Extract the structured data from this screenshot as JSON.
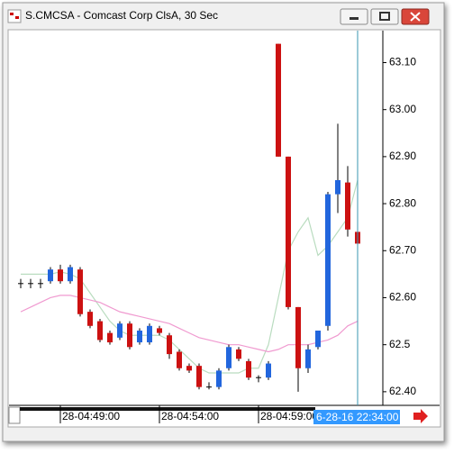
{
  "chart_data": {
    "type": "candlestick",
    "title": "S.CMCSA - Comcast Corp ClsA, 30 Sec",
    "categories": [
      null,
      null,
      null,
      null,
      "28-04:49:00",
      null,
      null,
      null,
      null,
      null,
      null,
      null,
      null,
      null,
      "28-04:54:00",
      null,
      null,
      null,
      null,
      null,
      null,
      null,
      null,
      null,
      "28-04:59:00",
      null,
      null,
      null,
      null,
      null,
      null,
      null,
      null,
      null,
      null
    ],
    "open": [
      62.63,
      62.63,
      62.63,
      62.635,
      62.66,
      62.635,
      62.66,
      62.57,
      62.55,
      62.525,
      62.515,
      62.545,
      62.505,
      62.505,
      62.535,
      62.52,
      62.485,
      62.455,
      62.455,
      62.41,
      62.41,
      62.45,
      62.49,
      62.465,
      62.43,
      62.43,
      63.14,
      62.9,
      62.58,
      62.45,
      62.495,
      62.54,
      62.82,
      62.845,
      62.74
    ],
    "high": [
      62.64,
      62.64,
      62.64,
      62.665,
      62.67,
      62.67,
      62.665,
      62.575,
      62.555,
      62.53,
      62.55,
      62.55,
      62.535,
      62.545,
      62.54,
      62.525,
      62.49,
      62.46,
      62.46,
      62.42,
      62.45,
      62.5,
      62.495,
      62.47,
      62.435,
      62.465,
      63.14,
      62.9,
      62.58,
      62.5,
      62.53,
      62.825,
      62.97,
      62.88,
      62.755
    ],
    "low": [
      62.62,
      62.62,
      62.62,
      62.63,
      62.63,
      62.63,
      62.56,
      62.535,
      62.505,
      62.5,
      62.51,
      62.49,
      62.5,
      62.5,
      62.52,
      62.47,
      62.445,
      62.44,
      62.405,
      62.405,
      62.405,
      62.445,
      62.465,
      62.425,
      62.42,
      62.425,
      62.9,
      62.575,
      62.4,
      62.44,
      62.49,
      62.53,
      62.78,
      62.73,
      62.69
    ],
    "close": [
      62.63,
      62.63,
      62.63,
      62.66,
      62.635,
      62.665,
      62.565,
      62.54,
      62.51,
      62.505,
      62.545,
      62.495,
      62.53,
      62.54,
      62.525,
      62.48,
      62.45,
      62.445,
      62.41,
      62.41,
      62.445,
      62.495,
      62.47,
      62.43,
      62.43,
      62.46,
      62.9,
      62.58,
      62.45,
      62.49,
      62.53,
      62.82,
      62.85,
      62.745,
      62.715
    ],
    "up_color": "#2266dd",
    "down_color": "#cc1111",
    "flat_color": "#000000",
    "overlays": [
      {
        "color": "#b9dcbf",
        "values": [
          62.65,
          62.65,
          62.65,
          62.65,
          62.655,
          62.65,
          62.64,
          62.61,
          62.58,
          62.55,
          62.53,
          62.52,
          62.52,
          62.52,
          62.52,
          62.51,
          62.49,
          62.47,
          62.45,
          62.44,
          62.44,
          62.44,
          62.44,
          62.45,
          62.45,
          62.5,
          62.6,
          62.7,
          62.74,
          62.77,
          62.69,
          62.71,
          62.74,
          62.77,
          62.85
        ]
      },
      {
        "color": "#f09ad0",
        "values": [
          62.57,
          62.58,
          62.59,
          62.6,
          62.605,
          62.605,
          62.6,
          62.595,
          62.59,
          62.58,
          62.57,
          62.565,
          62.56,
          62.555,
          62.55,
          62.545,
          62.535,
          62.525,
          62.515,
          62.51,
          62.505,
          62.5,
          62.5,
          62.495,
          62.49,
          62.485,
          62.49,
          62.5,
          62.5,
          62.5,
          62.505,
          62.51,
          62.52,
          62.54,
          62.55
        ]
      }
    ],
    "ylim": [
      62.371,
      63.168
    ],
    "yticks": [
      {
        "value": 62.4,
        "label": "62.40"
      },
      62.5,
      {
        "value": 62.6,
        "label": "62.60"
      },
      {
        "value": 62.7,
        "label": "62.70"
      },
      {
        "value": 62.8,
        "label": "62.80"
      },
      {
        "value": 62.9,
        "label": "62.90"
      },
      {
        "value": 63.0,
        "label": "63.00"
      },
      {
        "value": 63.1,
        "label": "63.10"
      }
    ],
    "cursor_index": 34,
    "cursor_label": "6-28-16 22:34:00",
    "cursor_color": "#3a95b0"
  }
}
